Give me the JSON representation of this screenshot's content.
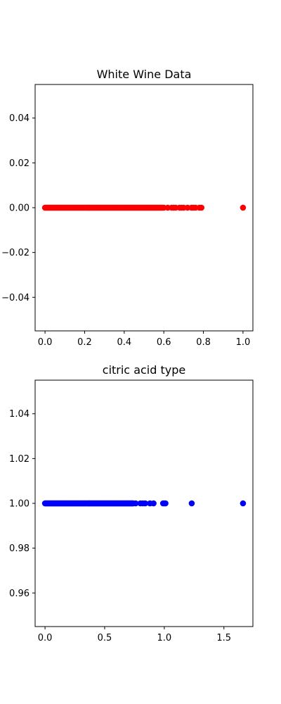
{
  "chart_data": [
    {
      "type": "scatter",
      "title": "White Wine Data",
      "xlabel": "",
      "ylabel": "",
      "color": "#ff0000",
      "xlim": [
        -0.05,
        1.05
      ],
      "ylim": [
        -0.055,
        0.055
      ],
      "x_ticks": [
        0.0,
        0.2,
        0.4,
        0.6,
        0.8,
        1.0
      ],
      "x_tick_labels": [
        "0.0",
        "0.2",
        "0.4",
        "0.6",
        "0.8",
        "1.0"
      ],
      "y_ticks": [
        -0.04,
        -0.02,
        0.0,
        0.02,
        0.04
      ],
      "y_tick_labels": [
        "−0.04",
        "−0.02",
        "0.00",
        "0.02",
        "0.04"
      ],
      "points": {
        "y": 0.0,
        "dense_range": [
          0.0,
          0.6
        ],
        "x": [
          0.62,
          0.64,
          0.65,
          0.66,
          0.68,
          0.69,
          0.7,
          0.72,
          0.74,
          0.75,
          0.76,
          0.78,
          0.79,
          1.0
        ]
      }
    },
    {
      "type": "scatter",
      "title": "citric acid type",
      "xlabel": "",
      "ylabel": "",
      "color": "#0000ff",
      "xlim": [
        -0.083,
        1.743
      ],
      "ylim": [
        0.945,
        1.055
      ],
      "x_ticks": [
        0.0,
        0.5,
        1.0,
        1.5
      ],
      "x_tick_labels": [
        "0.0",
        "0.5",
        "1.0",
        "1.5"
      ],
      "y_ticks": [
        0.96,
        0.98,
        1.0,
        1.02,
        1.04
      ],
      "y_tick_labels": [
        "0.96",
        "0.98",
        "1.00",
        "1.02",
        "1.04"
      ],
      "points": {
        "y": 1.0,
        "dense_range": [
          0.0,
          0.74
        ],
        "x": [
          0.76,
          0.8,
          0.82,
          0.84,
          0.88,
          0.91,
          0.99,
          1.0,
          1.01,
          1.23,
          1.66
        ]
      }
    }
  ]
}
